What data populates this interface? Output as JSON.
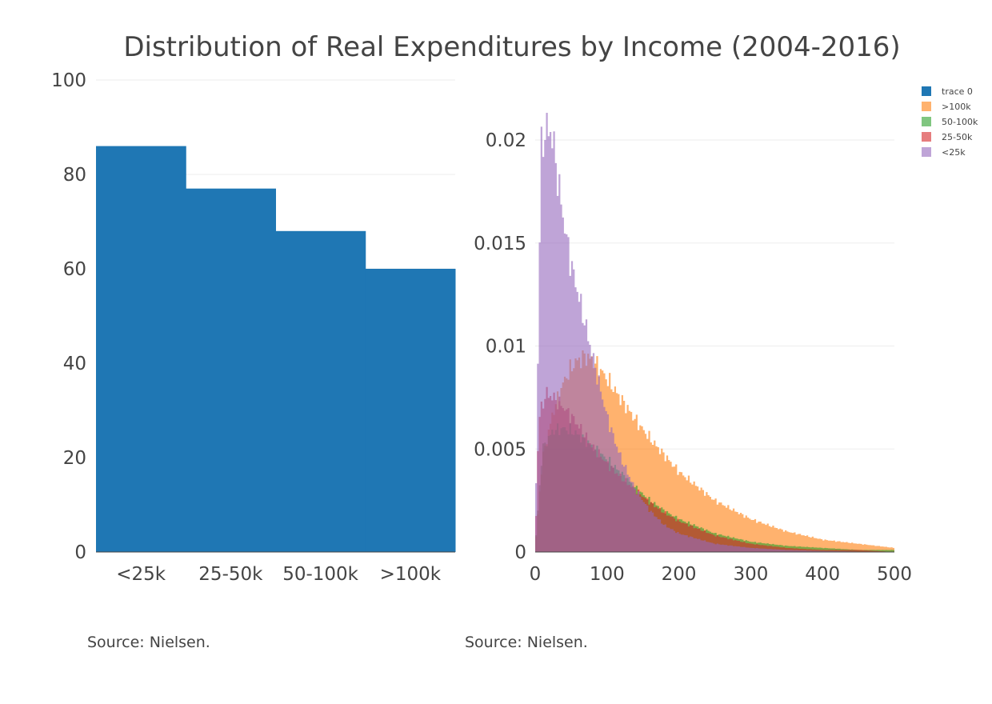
{
  "title": "Distribution of Real Expenditures by Income (2004-2016)",
  "source_left": "Source: Nielsen.",
  "source_right": "Source: Nielsen.",
  "legend": [
    {
      "label": "trace 0",
      "color": "#1f77b4"
    },
    {
      "label": ">100k",
      "color": "#ff7f0e"
    },
    {
      "label": "50-100k",
      "color": "#2ca02c"
    },
    {
      "label": "25-50k",
      "color": "#d62728"
    },
    {
      "label": "<25k",
      "color": "#9467bd"
    }
  ],
  "chart_data": [
    {
      "type": "bar",
      "categories": [
        "<25k",
        "25-50k",
        "50-100k",
        ">100k"
      ],
      "values": [
        86,
        77,
        68,
        60
      ],
      "ylim": [
        0,
        100
      ],
      "yticks": [
        "0",
        "20",
        "40",
        "60",
        "80",
        "100"
      ],
      "grid": true,
      "color": "#1f77b4"
    },
    {
      "type": "area",
      "xlim": [
        0,
        500
      ],
      "ylim": [
        0,
        0.022
      ],
      "xticks": [
        "0",
        "100",
        "200",
        "300",
        "400",
        "500"
      ],
      "yticks": [
        "0",
        "0.005",
        "0.01",
        "0.015",
        "0.02"
      ],
      "grid": true,
      "opacity": 0.6,
      "series": [
        {
          "name": ">100k",
          "color": "#ff7f0e",
          "x": [
            0,
            10,
            25,
            40,
            55,
            70,
            80,
            90,
            100,
            120,
            140,
            160,
            180,
            200,
            250,
            300,
            350,
            400,
            450,
            500
          ],
          "y": [
            0.0002,
            0.0045,
            0.0068,
            0.0083,
            0.0092,
            0.0095,
            0.0093,
            0.0089,
            0.0084,
            0.0074,
            0.0064,
            0.0055,
            0.0047,
            0.0039,
            0.0025,
            0.0016,
            0.001,
            0.0006,
            0.0004,
            0.0002
          ]
        },
        {
          "name": "50-100k",
          "color": "#2ca02c",
          "x": [
            0,
            10,
            25,
            40,
            55,
            70,
            80,
            90,
            100,
            120,
            140,
            160,
            180,
            200,
            250,
            300,
            350,
            400,
            450,
            500
          ],
          "y": [
            0.0002,
            0.005,
            0.0059,
            0.006,
            0.0058,
            0.0054,
            0.0051,
            0.0048,
            0.0045,
            0.0038,
            0.0031,
            0.0025,
            0.002,
            0.0016,
            0.0009,
            0.0005,
            0.0003,
            0.0002,
            0.0001,
            0.0001
          ]
        },
        {
          "name": "25-50k",
          "color": "#d62728",
          "x": [
            0,
            5,
            15,
            25,
            40,
            55,
            70,
            80,
            90,
            100,
            120,
            140,
            160,
            180,
            200,
            250,
            300,
            350,
            400,
            450,
            500
          ],
          "y": [
            0.0002,
            0.0065,
            0.0077,
            0.0075,
            0.007,
            0.0064,
            0.0056,
            0.0051,
            0.0047,
            0.0043,
            0.0036,
            0.003,
            0.0024,
            0.0019,
            0.0015,
            0.0008,
            0.0004,
            0.0002,
            0.0001,
            0.0001,
            0.0
          ]
        },
        {
          "name": "<25k",
          "color": "#9467bd",
          "x": [
            0,
            3,
            8,
            15,
            20,
            25,
            30,
            40,
            50,
            60,
            70,
            80,
            90,
            100,
            110,
            120,
            140,
            160,
            180,
            200,
            250,
            300,
            350,
            400,
            450,
            500
          ],
          "y": [
            0.0005,
            0.0074,
            0.0195,
            0.0205,
            0.0205,
            0.02,
            0.0185,
            0.016,
            0.014,
            0.0125,
            0.011,
            0.0095,
            0.008,
            0.0066,
            0.0055,
            0.0045,
            0.003,
            0.002,
            0.0013,
            0.0009,
            0.0004,
            0.0002,
            0.0001,
            5e-05,
            2e-05,
            1e-05
          ]
        }
      ]
    }
  ]
}
